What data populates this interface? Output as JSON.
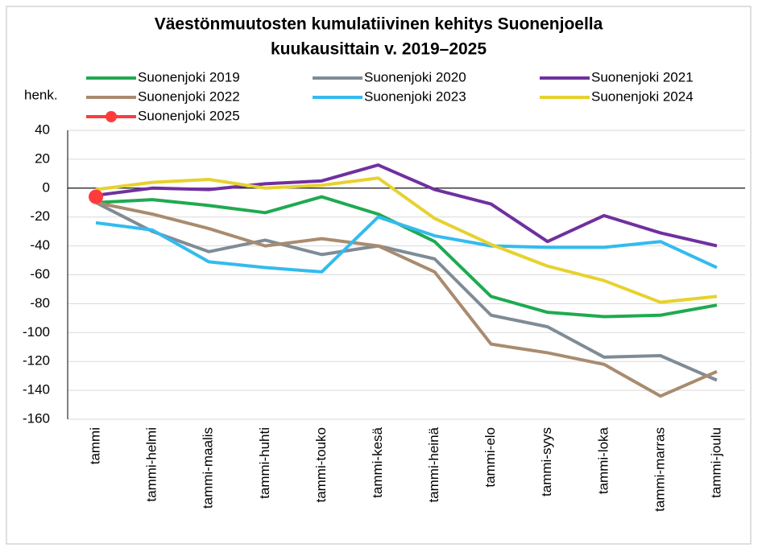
{
  "chart_data": {
    "type": "line",
    "title": "Väestönmuutosten kumulatiivinen kehitys Suonenjoella",
    "subtitle": "kuukausittain v. 2019–2025",
    "y_label": "henk.",
    "categories": [
      "tammi",
      "tammi-helmi",
      "tammi-maalis",
      "tammi-huhti",
      "tammi-touko",
      "tammi-kesä",
      "tammi-heinä",
      "tammi-elo",
      "tammi-syys",
      "tammi-loka",
      "tammi-marras",
      "tammi-joulu"
    ],
    "series": [
      {
        "name": "Suonenjoki 2019",
        "color": "#1faa50",
        "values": [
          -10,
          -8,
          -12,
          -17,
          -6,
          -18,
          -37,
          -75,
          -86,
          -89,
          -88,
          -81
        ]
      },
      {
        "name": "Suonenjoki 2020",
        "color": "#7f8c96",
        "values": [
          -10,
          -30,
          -44,
          -36,
          -46,
          -40,
          -49,
          -88,
          -96,
          -117,
          -116,
          -133
        ]
      },
      {
        "name": "Suonenjoki 2021",
        "color": "#7030a0",
        "values": [
          -5,
          0,
          -1,
          3,
          5,
          16,
          -1,
          -11,
          -37,
          -19,
          -31,
          -40
        ]
      },
      {
        "name": "Suonenjoki 2022",
        "color": "#a98b6f",
        "values": [
          -10,
          -18,
          -28,
          -40,
          -35,
          -40,
          -58,
          -108,
          -114,
          -122,
          -144,
          -127
        ]
      },
      {
        "name": "Suonenjoki 2023",
        "color": "#33bbee",
        "values": [
          -24,
          -29,
          -51,
          -55,
          -58,
          -20,
          -33,
          -40,
          -41,
          -41,
          -37,
          -55
        ]
      },
      {
        "name": "Suonenjoki 2024",
        "color": "#e6d22e",
        "values": [
          -1,
          4,
          6,
          0,
          2,
          7,
          -21,
          -39,
          -54,
          -64,
          -79,
          -75
        ]
      },
      {
        "name": "Suonenjoki 2025",
        "color": "#ff3b3b",
        "marker": true,
        "values": [
          -6,
          null,
          null,
          null,
          null,
          null,
          null,
          null,
          null,
          null,
          null,
          null
        ]
      }
    ],
    "ylim": [
      -160,
      40
    ],
    "yticks": [
      -160,
      -140,
      -120,
      -100,
      -80,
      -60,
      -40,
      -20,
      0,
      20,
      40
    ],
    "grid": true
  }
}
